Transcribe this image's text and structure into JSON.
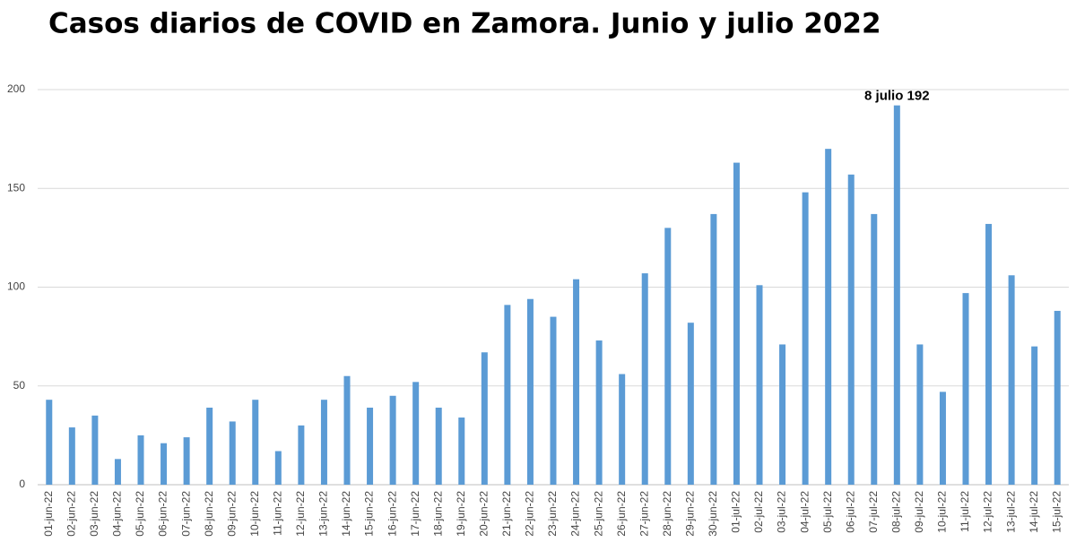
{
  "chart_data": {
    "type": "bar",
    "title": "Casos diarios de COVID en Zamora. Junio y julio 2022",
    "annotation": "8 julio 192",
    "categories": [
      "01-jun-22",
      "02-jun-22",
      "03-jun-22",
      "04-jun-22",
      "05-jun-22",
      "06-jun-22",
      "07-jun-22",
      "08-jun-22",
      "09-jun-22",
      "10-jun-22",
      "11-jun-22",
      "12-jun-22",
      "13-jun-22",
      "14-jun-22",
      "15-jun-22",
      "16-jun-22",
      "17-jun-22",
      "18-jun-22",
      "19-jun-22",
      "20-jun-22",
      "21-jun-22",
      "22-jun-22",
      "23-jun-22",
      "24-jun-22",
      "25-jun-22",
      "26-jun-22",
      "27-jun-22",
      "28-jun-22",
      "29-jun-22",
      "30-jun-22",
      "01-jul-22",
      "02-jul-22",
      "03-jul-22",
      "04-jul-22",
      "05-jul-22",
      "06-jul-22",
      "07-jul-22",
      "08-jul-22",
      "09-jul-22",
      "10-jul-22",
      "11-jul-22",
      "12-jul-22",
      "13-jul-22",
      "14-jul-22",
      "15-jul-22"
    ],
    "values": [
      43,
      29,
      35,
      13,
      25,
      21,
      24,
      39,
      32,
      43,
      17,
      30,
      43,
      55,
      39,
      45,
      52,
      39,
      34,
      67,
      91,
      94,
      85,
      104,
      73,
      56,
      107,
      130,
      82,
      137,
      163,
      101,
      71,
      148,
      170,
      157,
      137,
      192,
      71,
      47,
      97,
      132,
      106,
      70,
      88
    ],
    "color": "#5b9bd5",
    "ylim": [
      0,
      200
    ],
    "yticks": [
      0,
      50,
      100,
      150,
      200
    ],
    "grid": true
  }
}
